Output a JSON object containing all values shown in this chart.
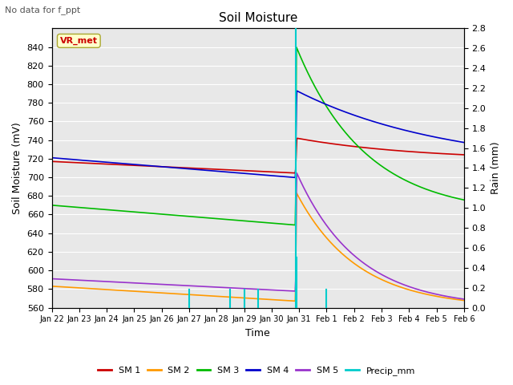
{
  "title": "Soil Moisture",
  "top_left_text": "No data for f_ppt",
  "ylabel_left": "Soil Moisture (mV)",
  "ylabel_right": "Rain (mm)",
  "xlabel": "Time",
  "legend_box_label": "VR_met",
  "ylim_left": [
    560,
    860
  ],
  "ylim_right": [
    0.0,
    2.8
  ],
  "yticks_left": [
    560,
    580,
    600,
    620,
    640,
    660,
    680,
    700,
    720,
    740,
    760,
    780,
    800,
    820,
    840
  ],
  "yticks_right": [
    0.0,
    0.2,
    0.4,
    0.6,
    0.8,
    1.0,
    1.2,
    1.4,
    1.6,
    1.8,
    2.0,
    2.2,
    2.4,
    2.6,
    2.8
  ],
  "xtick_labels": [
    "Jan 22",
    "Jan 23",
    "Jan 24",
    "Jan 25",
    "Jan 26",
    "Jan 27",
    "Jan 28",
    "Jan 29",
    "Jan 30",
    "Jan 31",
    "Feb 1",
    "Feb 2",
    "Feb 3",
    "Feb 4",
    "Feb 5",
    "Feb 6"
  ],
  "background_color": "#e8e8e8",
  "grid_color": "#ffffff",
  "colors": {
    "SM1": "#cc0000",
    "SM2": "#ff9900",
    "SM3": "#00bb00",
    "SM4": "#0000cc",
    "SM5": "#9933cc",
    "Precip": "#00cccc"
  },
  "figsize": [
    6.4,
    4.8
  ],
  "dpi": 100
}
